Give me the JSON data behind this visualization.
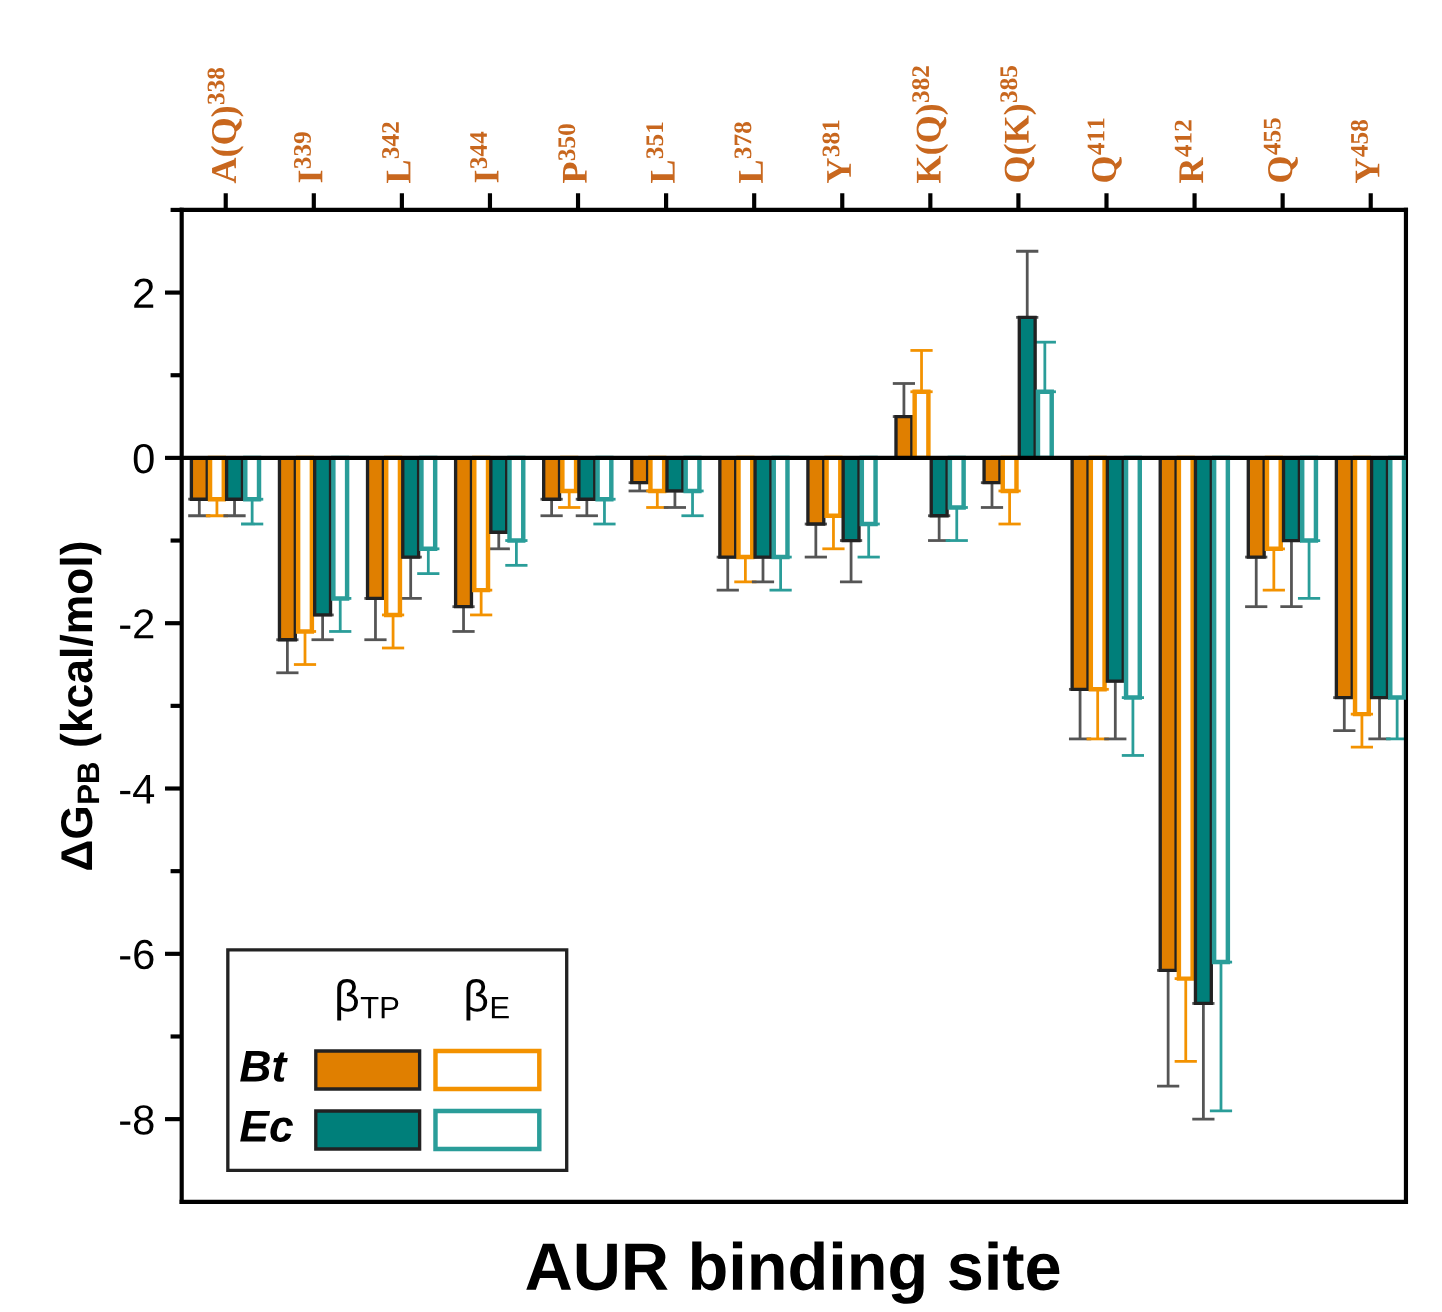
{
  "chart_data": {
    "type": "bar",
    "xlabel": "AUR binding site",
    "ylabel": "ΔG$_{PB}$ (kcal/mol)",
    "categories": [
      "A(Q)$^{338}$",
      "I$^{339}$",
      "L$^{342}$",
      "I$^{344}$",
      "P$^{350}$",
      "L$^{351}$",
      "L$^{378}$",
      "Y$^{381}$",
      "K(Q)$^{382}$",
      "Q(K)$^{385}$",
      "Q$^{411}$",
      "R$^{412}$",
      "Q$^{455}$",
      "Y$^{458}$"
    ],
    "series": [
      {
        "color": "#e07f00",
        "values": [
          -0.5,
          -2.2,
          -1.7,
          -1.8,
          -0.5,
          -0.3,
          -1.2,
          -0.8,
          0.5,
          -0.3,
          -2.8,
          -6.2,
          -1.2,
          -2.9
        ],
        "errors": [
          [
            -0.7,
            -0.5
          ],
          [
            -2.6,
            -2.2
          ],
          [
            -2.2,
            -1.7
          ],
          [
            -2.1,
            -1.8
          ],
          [
            -0.7,
            -0.5
          ],
          [
            -0.4,
            -0.3
          ],
          [
            -1.6,
            -1.2
          ],
          [
            -1.2,
            -0.8
          ],
          [
            0.5,
            0.9
          ],
          [
            -0.6,
            -0.3
          ],
          [
            -3.4,
            -2.8
          ],
          [
            -7.6,
            -6.2
          ],
          [
            -1.8,
            -1.2
          ],
          [
            -3.3,
            -2.9
          ]
        ]
      },
      {
        "color": "#f39200",
        "values": [
          -0.5,
          -2.1,
          -1.9,
          -1.6,
          -0.4,
          -0.4,
          -1.2,
          -0.7,
          0.8,
          -0.4,
          -2.8,
          -6.3,
          -1.1,
          -3.1
        ],
        "errors": [
          [
            -0.7,
            -0.5
          ],
          [
            -2.5,
            -2.1
          ],
          [
            -2.3,
            -1.9
          ],
          [
            -1.9,
            -1.6
          ],
          [
            -0.6,
            -0.4
          ],
          [
            -0.6,
            -0.4
          ],
          [
            -1.5,
            -1.2
          ],
          [
            -1.1,
            -0.7
          ],
          [
            0.8,
            1.3
          ],
          [
            -0.8,
            -0.4
          ],
          [
            -3.4,
            -2.8
          ],
          [
            -7.3,
            -6.3
          ],
          [
            -1.6,
            -1.1
          ],
          [
            -3.5,
            -3.1
          ]
        ]
      },
      {
        "color": "#007f7a",
        "values": [
          -0.5,
          -1.9,
          -1.2,
          -0.9,
          -0.5,
          -0.4,
          -1.2,
          -1.0,
          -0.7,
          1.7,
          -2.7,
          -6.6,
          -1.0,
          -2.9
        ],
        "errors": [
          [
            -0.7,
            -0.5
          ],
          [
            -2.2,
            -1.9
          ],
          [
            -1.7,
            -1.2
          ],
          [
            -1.1,
            -0.9
          ],
          [
            -0.7,
            -0.5
          ],
          [
            -0.6,
            -0.4
          ],
          [
            -1.5,
            -1.2
          ],
          [
            -1.5,
            -1.0
          ],
          [
            -1.0,
            -0.7
          ],
          [
            1.7,
            2.5
          ],
          [
            -3.4,
            -2.7
          ],
          [
            -8.0,
            -6.6
          ],
          [
            -1.8,
            -1.0
          ],
          [
            -3.4,
            -2.9
          ]
        ]
      },
      {
        "color": "#2a9d99",
        "values": [
          -0.5,
          -1.7,
          -1.1,
          -1.0,
          -0.5,
          -0.4,
          -1.2,
          -0.8,
          -0.6,
          0.8,
          -2.9,
          -6.1,
          -1.0,
          -2.9
        ],
        "errors": [
          [
            -0.8,
            -0.5
          ],
          [
            -2.1,
            -1.7
          ],
          [
            -1.4,
            -1.1
          ],
          [
            -1.3,
            -1.0
          ],
          [
            -0.8,
            -0.5
          ],
          [
            -0.7,
            -0.4
          ],
          [
            -1.6,
            -1.2
          ],
          [
            -1.2,
            -0.8
          ],
          [
            -1.0,
            -0.6
          ],
          [
            0.8,
            1.4
          ],
          [
            -3.6,
            -2.9
          ],
          [
            -7.9,
            -6.1
          ],
          [
            -1.7,
            -1.0
          ],
          [
            -3.4,
            -2.9
          ]
        ]
      }
    ],
    "ylim": [
      -9,
      3
    ],
    "yticks": [
      -8,
      -6,
      -4,
      -2,
      0,
      2
    ],
    "annotations": [
      "β$_{TP}$",
      "β$_{E}$",
      "Bt",
      "Ec"
    ],
    "tick_labels": "y"
  }
}
